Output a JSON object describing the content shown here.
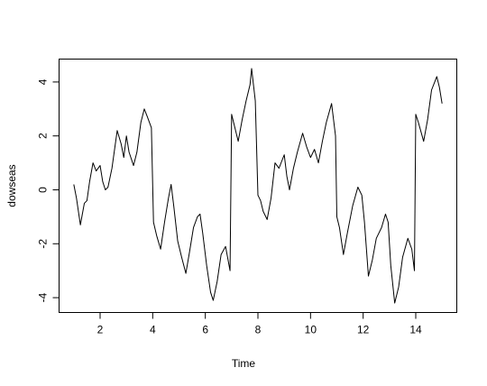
{
  "chart_data": {
    "type": "line",
    "xlabel": "Time",
    "ylabel": "dowseas",
    "xlim": [
      0.44,
      15.56
    ],
    "ylim": [
      -4.55,
      4.85
    ],
    "xticks": [
      2,
      4,
      6,
      8,
      10,
      12,
      14
    ],
    "yticks": [
      -4,
      -2,
      0,
      2,
      4
    ],
    "color": "#000000",
    "x": [
      1,
      1.1,
      1.25,
      1.4,
      1.5,
      1.6,
      1.73,
      1.85,
      2,
      2.1,
      2.2,
      2.3,
      2.45,
      2.65,
      2.8,
      2.9,
      3.0,
      3.1,
      3.27,
      3.4,
      3.55,
      3.68,
      3.8,
      3.95,
      4.03,
      4.15,
      4.3,
      4.45,
      4.6,
      4.7,
      4.8,
      4.95,
      5.1,
      5.26,
      5.4,
      5.55,
      5.7,
      5.8,
      5.9,
      6.05,
      6.2,
      6.3,
      6.45,
      6.6,
      6.77,
      6.94,
      7.0,
      7.1,
      7.25,
      7.4,
      7.55,
      7.7,
      7.76,
      7.9,
      8.0,
      8.1,
      8.2,
      8.35,
      8.5,
      8.65,
      8.8,
      9.0,
      9.1,
      9.2,
      9.35,
      9.5,
      9.7,
      9.85,
      10.0,
      10.15,
      10.3,
      10.45,
      10.6,
      10.8,
      10.95,
      11.0,
      11.1,
      11.25,
      11.4,
      11.6,
      11.8,
      11.95,
      12.05,
      12.2,
      12.35,
      12.5,
      12.7,
      12.85,
      12.95,
      13.05,
      13.2,
      13.35,
      13.5,
      13.7,
      13.85,
      13.95,
      14.0,
      14.1,
      14.3,
      14.45,
      14.6,
      14.8,
      14.9,
      15
    ],
    "values": [
      0.2,
      -0.3,
      -1.3,
      -0.5,
      -0.4,
      0.3,
      1.0,
      0.7,
      0.9,
      0.3,
      0.0,
      0.1,
      0.8,
      2.2,
      1.7,
      1.2,
      2.0,
      1.4,
      0.9,
      1.4,
      2.5,
      3.0,
      2.7,
      2.3,
      -1.2,
      -1.7,
      -2.2,
      -1.2,
      -0.3,
      0.2,
      -0.6,
      -1.9,
      -2.5,
      -3.1,
      -2.3,
      -1.4,
      -1.0,
      -0.9,
      -1.6,
      -2.8,
      -3.8,
      -4.1,
      -3.4,
      -2.4,
      -2.1,
      -3.0,
      2.8,
      2.4,
      1.8,
      2.6,
      3.3,
      3.9,
      4.5,
      3.3,
      -0.2,
      -0.4,
      -0.8,
      -1.1,
      -0.3,
      1.0,
      0.8,
      1.3,
      0.5,
      0.0,
      0.8,
      1.4,
      2.1,
      1.6,
      1.2,
      1.5,
      1.0,
      1.8,
      2.5,
      3.2,
      2.0,
      -1.0,
      -1.4,
      -2.4,
      -1.6,
      -0.6,
      0.1,
      -0.2,
      -1.2,
      -3.2,
      -2.6,
      -1.8,
      -1.4,
      -0.9,
      -1.2,
      -2.8,
      -4.2,
      -3.6,
      -2.5,
      -1.8,
      -2.2,
      -3.0,
      2.8,
      2.5,
      1.8,
      2.6,
      3.7,
      4.2,
      3.8,
      3.2
    ]
  }
}
